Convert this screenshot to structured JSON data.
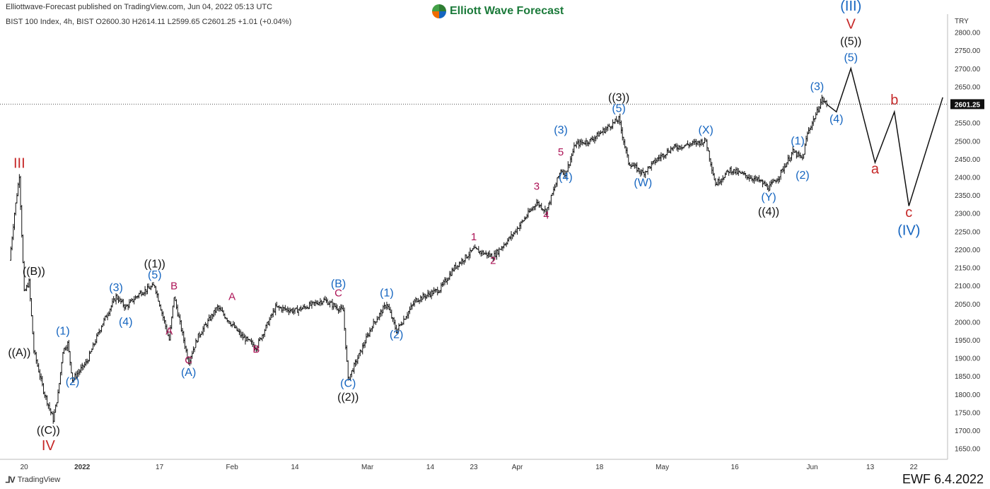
{
  "header": {
    "published": "Elliottwave-Forecast published on TradingView.com, Jun 04, 2022 05:13 UTC",
    "brand": "Elliott Wave Forecast",
    "symbol": "BIST 100 Index, 4h, BIST  O2600.30  H2614.11  L2599.65  C2601.25  +1.01 (+0.04%)",
    "currency": "TRY"
  },
  "footer": {
    "tradingview": "TradingView",
    "ewf_date": "EWF 6.4.2022"
  },
  "colors": {
    "blue": "#1565c0",
    "red": "#c62828",
    "magenta": "#ad1457",
    "black": "#111111"
  },
  "chart_data": {
    "type": "candlestick",
    "ylim": [
      1620,
      2850
    ],
    "y_ticks": [
      1650,
      1700,
      1750,
      1800,
      1850,
      1900,
      1950,
      2000,
      2050,
      2100,
      2150,
      2200,
      2250,
      2300,
      2350,
      2400,
      2450,
      2500,
      2550,
      2600,
      2650,
      2700,
      2750,
      2800
    ],
    "x_ticks": [
      {
        "label": "20",
        "date": "2021-12-20"
      },
      {
        "label": "2022",
        "date": "2022-01-01"
      },
      {
        "label": "17",
        "date": "2022-01-17"
      },
      {
        "label": "Feb",
        "date": "2022-02-01"
      },
      {
        "label": "14",
        "date": "2022-02-14"
      },
      {
        "label": "Mar",
        "date": "2022-03-01"
      },
      {
        "label": "14",
        "date": "2022-03-14"
      },
      {
        "label": "23",
        "date": "2022-03-23"
      },
      {
        "label": "Apr",
        "date": "2022-04-01"
      },
      {
        "label": "18",
        "date": "2022-04-18"
      },
      {
        "label": "May",
        "date": "2022-05-01"
      },
      {
        "label": "16",
        "date": "2022-05-16"
      },
      {
        "label": "Jun",
        "date": "2022-06-01"
      },
      {
        "label": "13",
        "date": "2022-06-13"
      },
      {
        "label": "22",
        "date": "2022-06-22"
      }
    ],
    "last_price": 2601.25,
    "last_price_label": "2601.25",
    "price_path": [
      {
        "date": "2021-12-17",
        "price": 2170
      },
      {
        "date": "2021-12-18",
        "price": 2300
      },
      {
        "date": "2021-12-19",
        "price": 2405
      },
      {
        "date": "2021-12-20",
        "price": 2080
      },
      {
        "date": "2021-12-21",
        "price": 2110
      },
      {
        "date": "2021-12-22",
        "price": 1920
      },
      {
        "date": "2021-12-24",
        "price": 1810
      },
      {
        "date": "2021-12-26",
        "price": 1730
      },
      {
        "date": "2021-12-27",
        "price": 1800
      },
      {
        "date": "2021-12-28",
        "price": 1920
      },
      {
        "date": "2021-12-29",
        "price": 1940
      },
      {
        "date": "2021-12-30",
        "price": 1840
      },
      {
        "date": "2022-01-02",
        "price": 1890
      },
      {
        "date": "2022-01-05",
        "price": 1990
      },
      {
        "date": "2022-01-08",
        "price": 2070
      },
      {
        "date": "2022-01-10",
        "price": 2040
      },
      {
        "date": "2022-01-13",
        "price": 2080
      },
      {
        "date": "2022-01-16",
        "price": 2100
      },
      {
        "date": "2022-01-19",
        "price": 1950
      },
      {
        "date": "2022-01-20",
        "price": 2070
      },
      {
        "date": "2022-01-23",
        "price": 1890
      },
      {
        "date": "2022-01-25",
        "price": 1960
      },
      {
        "date": "2022-01-29",
        "price": 2040
      },
      {
        "date": "2022-02-03",
        "price": 1960
      },
      {
        "date": "2022-02-06",
        "price": 1930
      },
      {
        "date": "2022-02-10",
        "price": 2040
      },
      {
        "date": "2022-02-14",
        "price": 2030
      },
      {
        "date": "2022-02-20",
        "price": 2060
      },
      {
        "date": "2022-02-24",
        "price": 2030
      },
      {
        "date": "2022-02-25",
        "price": 1840
      },
      {
        "date": "2022-02-27",
        "price": 1900
      },
      {
        "date": "2022-03-02",
        "price": 1990
      },
      {
        "date": "2022-03-05",
        "price": 2050
      },
      {
        "date": "2022-03-07",
        "price": 1975
      },
      {
        "date": "2022-03-11",
        "price": 2060
      },
      {
        "date": "2022-03-16",
        "price": 2090
      },
      {
        "date": "2022-03-19",
        "price": 2150
      },
      {
        "date": "2022-03-23",
        "price": 2200
      },
      {
        "date": "2022-03-27",
        "price": 2180
      },
      {
        "date": "2022-03-31",
        "price": 2240
      },
      {
        "date": "2022-04-05",
        "price": 2330
      },
      {
        "date": "2022-04-07",
        "price": 2305
      },
      {
        "date": "2022-04-10",
        "price": 2420
      },
      {
        "date": "2022-04-11",
        "price": 2410
      },
      {
        "date": "2022-04-13",
        "price": 2490
      },
      {
        "date": "2022-04-16",
        "price": 2500
      },
      {
        "date": "2022-04-22",
        "price": 2560
      },
      {
        "date": "2022-04-24",
        "price": 2440
      },
      {
        "date": "2022-04-27",
        "price": 2410
      },
      {
        "date": "2022-04-30",
        "price": 2450
      },
      {
        "date": "2022-05-03",
        "price": 2480
      },
      {
        "date": "2022-05-10",
        "price": 2500
      },
      {
        "date": "2022-05-12",
        "price": 2380
      },
      {
        "date": "2022-05-15",
        "price": 2420
      },
      {
        "date": "2022-05-21",
        "price": 2390
      },
      {
        "date": "2022-05-23",
        "price": 2370
      },
      {
        "date": "2022-05-25",
        "price": 2400
      },
      {
        "date": "2022-05-28",
        "price": 2470
      },
      {
        "date": "2022-05-30",
        "price": 2450
      },
      {
        "date": "2022-05-31",
        "price": 2520
      },
      {
        "date": "2022-06-02",
        "price": 2580
      },
      {
        "date": "2022-06-03",
        "price": 2615
      },
      {
        "date": "2022-06-04",
        "price": 2601
      }
    ],
    "projection": [
      {
        "date": "2022-06-04",
        "price": 2601
      },
      {
        "date": "2022-06-06",
        "price": 2580
      },
      {
        "date": "2022-06-09",
        "price": 2700
      },
      {
        "date": "2022-06-14",
        "price": 2440
      },
      {
        "date": "2022-06-18",
        "price": 2580
      },
      {
        "date": "2022-06-21",
        "price": 2320
      },
      {
        "date": "2022-06-28",
        "price": 2620
      }
    ],
    "wave_labels": [
      {
        "text": "III",
        "date": "2021-12-19",
        "price": 2425,
        "color": "red",
        "size": 20
      },
      {
        "text": "((B))",
        "date": "2021-12-22",
        "price": 2130,
        "color": "black",
        "size": 16
      },
      {
        "text": "((A))",
        "date": "2021-12-19",
        "price": 1905,
        "color": "black",
        "size": 16
      },
      {
        "text": "((C))",
        "date": "2021-12-25",
        "price": 1690,
        "color": "black",
        "size": 16
      },
      {
        "text": "IV",
        "date": "2021-12-25",
        "price": 1645,
        "color": "red",
        "size": 20
      },
      {
        "text": "(1)",
        "date": "2021-12-28",
        "price": 1965,
        "color": "blue",
        "size": 16
      },
      {
        "text": "(2)",
        "date": "2021-12-30",
        "price": 1825,
        "color": "blue",
        "size": 16
      },
      {
        "text": "(3)",
        "date": "2022-01-08",
        "price": 2085,
        "color": "blue",
        "size": 16
      },
      {
        "text": "(4)",
        "date": "2022-01-10",
        "price": 1990,
        "color": "blue",
        "size": 16
      },
      {
        "text": "((1))",
        "date": "2022-01-16",
        "price": 2150,
        "color": "black",
        "size": 16
      },
      {
        "text": "(5)",
        "date": "2022-01-16",
        "price": 2120,
        "color": "blue",
        "size": 16
      },
      {
        "text": "B",
        "date": "2022-01-20",
        "price": 2090,
        "color": "magenta",
        "size": 15
      },
      {
        "text": "A",
        "date": "2022-01-19",
        "price": 1965,
        "color": "magenta",
        "size": 15
      },
      {
        "text": "C",
        "date": "2022-01-23",
        "price": 1885,
        "color": "magenta",
        "size": 15
      },
      {
        "text": "(A)",
        "date": "2022-01-23",
        "price": 1850,
        "color": "blue",
        "size": 16
      },
      {
        "text": "A",
        "date": "2022-02-01",
        "price": 2060,
        "color": "magenta",
        "size": 15
      },
      {
        "text": "B",
        "date": "2022-02-06",
        "price": 1915,
        "color": "magenta",
        "size": 15
      },
      {
        "text": "(B)",
        "date": "2022-02-23",
        "price": 2095,
        "color": "blue",
        "size": 16
      },
      {
        "text": "C",
        "date": "2022-02-23",
        "price": 2070,
        "color": "magenta",
        "size": 15
      },
      {
        "text": "(C)",
        "date": "2022-02-25",
        "price": 1820,
        "color": "blue",
        "size": 16
      },
      {
        "text": "((2))",
        "date": "2022-02-25",
        "price": 1782,
        "color": "black",
        "size": 16
      },
      {
        "text": "(1)",
        "date": "2022-03-05",
        "price": 2070,
        "color": "blue",
        "size": 16
      },
      {
        "text": "(2)",
        "date": "2022-03-07",
        "price": 1955,
        "color": "blue",
        "size": 16
      },
      {
        "text": "1",
        "date": "2022-03-23",
        "price": 2225,
        "color": "magenta",
        "size": 15
      },
      {
        "text": "2",
        "date": "2022-03-27",
        "price": 2160,
        "color": "magenta",
        "size": 15
      },
      {
        "text": "3",
        "date": "2022-04-05",
        "price": 2365,
        "color": "magenta",
        "size": 15
      },
      {
        "text": "4",
        "date": "2022-04-07",
        "price": 2285,
        "color": "magenta",
        "size": 15
      },
      {
        "text": "(3)",
        "date": "2022-04-10",
        "price": 2520,
        "color": "blue",
        "size": 16
      },
      {
        "text": "5",
        "date": "2022-04-10",
        "price": 2460,
        "color": "magenta",
        "size": 15
      },
      {
        "text": "(4)",
        "date": "2022-04-11",
        "price": 2390,
        "color": "blue",
        "size": 16
      },
      {
        "text": "((3))",
        "date": "2022-04-22",
        "price": 2610,
        "color": "black",
        "size": 16
      },
      {
        "text": "(5)",
        "date": "2022-04-22",
        "price": 2580,
        "color": "blue",
        "size": 16
      },
      {
        "text": "(W)",
        "date": "2022-04-27",
        "price": 2375,
        "color": "blue",
        "size": 16
      },
      {
        "text": "(X)",
        "date": "2022-05-10",
        "price": 2520,
        "color": "blue",
        "size": 16
      },
      {
        "text": "(Y)",
        "date": "2022-05-23",
        "price": 2335,
        "color": "blue",
        "size": 16
      },
      {
        "text": "((4))",
        "date": "2022-05-23",
        "price": 2295,
        "color": "black",
        "size": 16
      },
      {
        "text": "(1)",
        "date": "2022-05-29",
        "price": 2490,
        "color": "blue",
        "size": 16
      },
      {
        "text": "(2)",
        "date": "2022-05-30",
        "price": 2395,
        "color": "blue",
        "size": 16
      },
      {
        "text": "(3)",
        "date": "2022-06-02",
        "price": 2640,
        "color": "blue",
        "size": 16
      },
      {
        "text": "(4)",
        "date": "2022-06-06",
        "price": 2550,
        "color": "blue",
        "size": 16
      },
      {
        "text": "(III)",
        "date": "2022-06-09",
        "price": 2860,
        "color": "blue",
        "size": 20
      },
      {
        "text": "V",
        "date": "2022-06-09",
        "price": 2810,
        "color": "red",
        "size": 20
      },
      {
        "text": "((5))",
        "date": "2022-06-09",
        "price": 2765,
        "color": "black",
        "size": 16
      },
      {
        "text": "(5)",
        "date": "2022-06-09",
        "price": 2720,
        "color": "blue",
        "size": 16
      },
      {
        "text": "a",
        "date": "2022-06-14",
        "price": 2410,
        "color": "red",
        "size": 20
      },
      {
        "text": "b",
        "date": "2022-06-18",
        "price": 2600,
        "color": "red",
        "size": 20
      },
      {
        "text": "c",
        "date": "2022-06-21",
        "price": 2290,
        "color": "red",
        "size": 20
      },
      {
        "text": "(IV)",
        "date": "2022-06-21",
        "price": 2240,
        "color": "blue",
        "size": 20
      }
    ]
  }
}
